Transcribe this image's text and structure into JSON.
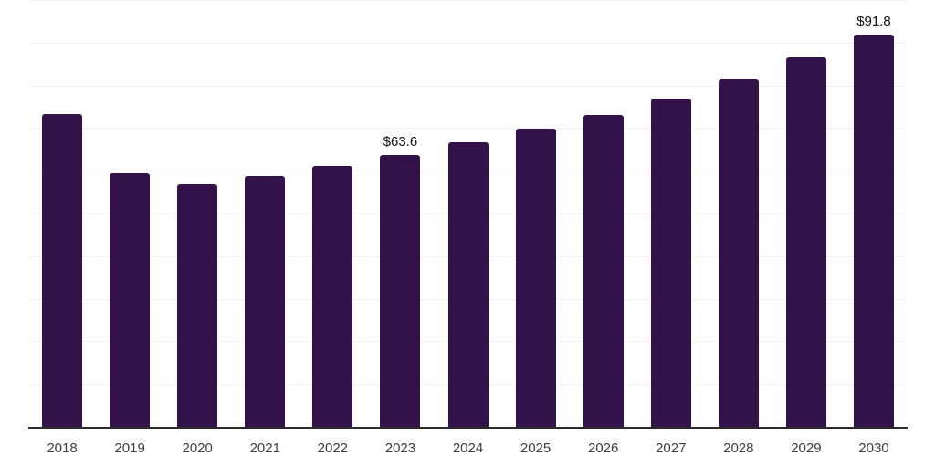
{
  "chart_data": {
    "type": "bar",
    "categories": [
      "2018",
      "2019",
      "2020",
      "2021",
      "2022",
      "2023",
      "2024",
      "2025",
      "2026",
      "2027",
      "2028",
      "2029",
      "2030"
    ],
    "values": [
      73.4,
      59.5,
      56.8,
      58.8,
      61.1,
      63.6,
      66.7,
      69.8,
      73.1,
      76.9,
      81.4,
      86.5,
      91.8
    ],
    "value_labels": [
      "",
      "",
      "",
      "",
      "",
      "$63.6",
      "",
      "",
      "",
      "",
      "",
      "",
      "$91.8"
    ],
    "title": "",
    "xlabel": "",
    "ylabel": "",
    "ylim": [
      0,
      100
    ],
    "grid_step": 10,
    "grid": "horizontal faint lines every 10 units",
    "legend_position": "none",
    "colors": {
      "bar": "#331149",
      "axis_line": "#2b2b2b",
      "gridline": "#f2f2f4",
      "tick_label": "#3d3d3d",
      "value_label": "#101010",
      "background": "#ffffff"
    }
  }
}
